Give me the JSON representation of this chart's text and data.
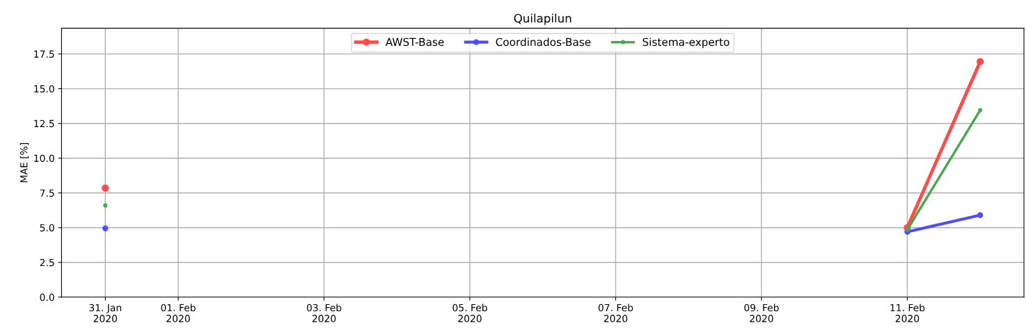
{
  "chart_data": {
    "type": "line",
    "title": "Quilapilun",
    "ylabel": "MAE [%]",
    "x": [
      "2020-01-31",
      "2020-02-01",
      "2020-02-02",
      "2020-02-03",
      "2020-02-04",
      "2020-02-05",
      "2020-02-06",
      "2020-02-07",
      "2020-02-08",
      "2020-02-09",
      "2020-02-10",
      "2020-02-11",
      "2020-02-12"
    ],
    "series": [
      {
        "name": "AWST-Base",
        "color": "#ff4d4d",
        "values": [
          7.85,
          null,
          null,
          null,
          null,
          null,
          null,
          null,
          null,
          null,
          null,
          5.0,
          16.95
        ]
      },
      {
        "name": "Coordinados-Base",
        "color": "#4d4dff",
        "values": [
          4.95,
          null,
          null,
          null,
          null,
          null,
          null,
          null,
          null,
          null,
          null,
          4.7,
          5.9
        ]
      },
      {
        "name": "Sistema-experto",
        "color": "#4da64d",
        "values": [
          6.6,
          null,
          null,
          null,
          null,
          null,
          null,
          null,
          null,
          null,
          null,
          4.85,
          13.45
        ]
      }
    ],
    "xlim": [
      "2020-01-30T09:36",
      "2020-02-12T14:24"
    ],
    "xticks": [
      {
        "value": "2020-01-31",
        "label": "31. Jan\n2020"
      },
      {
        "value": "2020-02-01",
        "label": "01. Feb\n2020"
      },
      {
        "value": "2020-02-03",
        "label": "03. Feb\n2020"
      },
      {
        "value": "2020-02-05",
        "label": "05. Feb\n2020"
      },
      {
        "value": "2020-02-07",
        "label": "07. Feb\n2020"
      },
      {
        "value": "2020-02-09",
        "label": "09. Feb\n2020"
      },
      {
        "value": "2020-02-11",
        "label": "11. Feb\n2020"
      }
    ],
    "ylim": [
      0,
      19.35
    ],
    "yticks": [
      {
        "value": 0,
        "label": "0.0"
      },
      {
        "value": 2.5,
        "label": "2.5"
      },
      {
        "value": 5,
        "label": "5.0"
      },
      {
        "value": 7.5,
        "label": "7.5"
      },
      {
        "value": 10,
        "label": "10.0"
      },
      {
        "value": 12.5,
        "label": "12.5"
      },
      {
        "value": 15,
        "label": "15.0"
      },
      {
        "value": 17.5,
        "label": "17.5"
      }
    ],
    "grid": true,
    "legend": "top",
    "marker": "circle",
    "line_style": "solid"
  }
}
